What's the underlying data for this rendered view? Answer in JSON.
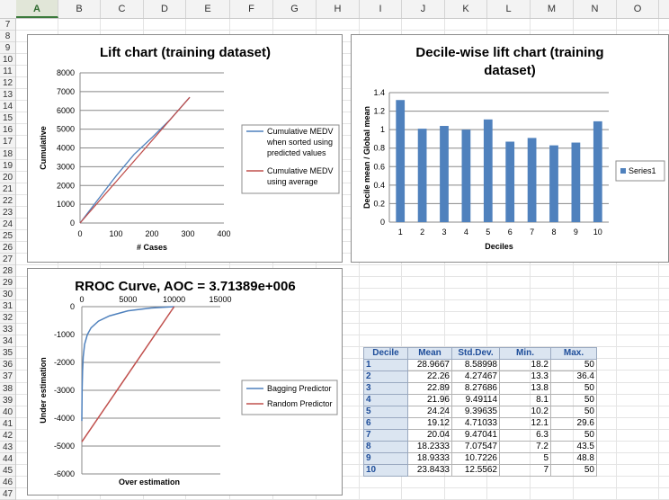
{
  "sheet": {
    "columns": [
      "A",
      "B",
      "C",
      "D",
      "E",
      "F",
      "G",
      "H",
      "I",
      "J",
      "K",
      "L",
      "M",
      "N",
      "O"
    ],
    "active_column": "A",
    "rows": [
      7,
      8,
      9,
      10,
      11,
      12,
      13,
      14,
      15,
      16,
      17,
      18,
      19,
      20,
      21,
      22,
      23,
      24,
      25,
      26,
      27,
      28,
      29,
      30,
      31,
      32,
      33,
      34,
      35,
      36,
      37,
      38,
      39,
      40,
      41,
      42,
      43,
      44,
      45,
      46,
      47
    ]
  },
  "lift_chart": {
    "chart_data": {
      "type": "line",
      "title": "Lift chart (training dataset)",
      "xlabel": "# Cases",
      "ylabel": "Cumulative",
      "xlim": [
        0,
        400
      ],
      "ylim": [
        0,
        8000
      ],
      "xticks": [
        "0",
        "100",
        "200",
        "300",
        "400"
      ],
      "yticks": [
        "0",
        "1000",
        "2000",
        "3000",
        "4000",
        "5000",
        "6000",
        "7000",
        "8000"
      ],
      "grid": "horizontal",
      "legend_position": "right",
      "series": [
        {
          "name": "Cumulative MEDV when sorted using predicted values",
          "color": "#4f81bd",
          "x": [
            0,
            20,
            50,
            100,
            150,
            200,
            250,
            305
          ],
          "y": [
            0,
            500,
            1250,
            2500,
            3650,
            4550,
            5500,
            6700
          ]
        },
        {
          "name": "Cumulative MEDV using average",
          "color": "#c0504d",
          "x": [
            0,
            305
          ],
          "y": [
            0,
            6700
          ]
        }
      ]
    },
    "legend_lines": [
      [
        "Cumulative MEDV",
        "when sorted using",
        "predicted values"
      ],
      [
        "Cumulative MEDV",
        "using average"
      ]
    ]
  },
  "decile_chart": {
    "chart_data": {
      "type": "bar",
      "title": "Decile-wise lift chart (training dataset)",
      "xlabel": "Deciles",
      "ylabel": "Decile mean / Global mean",
      "categories": [
        "1",
        "2",
        "3",
        "4",
        "5",
        "6",
        "7",
        "8",
        "9",
        "10"
      ],
      "ylim": [
        0,
        1.4
      ],
      "yticks": [
        "0",
        "0.2",
        "0.4",
        "0.6",
        "0.8",
        "1",
        "1.2",
        "1.4"
      ],
      "grid": "horizontal",
      "legend_position": "right",
      "series": [
        {
          "name": "Series1",
          "color": "#4f81bd",
          "values": [
            1.32,
            1.01,
            1.04,
            1.0,
            1.11,
            0.87,
            0.91,
            0.83,
            0.86,
            1.09
          ]
        }
      ]
    },
    "title_lines": [
      "Decile-wise lift chart (training",
      "dataset)"
    ]
  },
  "rroc_chart": {
    "chart_data": {
      "type": "line",
      "title": "RROC Curve, AOC = 3.71389e+006",
      "xlabel": "Over estimation",
      "ylabel": "Under estimation",
      "xlim": [
        0,
        15000
      ],
      "ylim": [
        -6000,
        0
      ],
      "xticks": [
        "0",
        "5000",
        "10000",
        "15000"
      ],
      "yticks": [
        "0",
        "-1000",
        "-2000",
        "-3000",
        "-4000",
        "-5000",
        "-6000"
      ],
      "grid": "horizontal",
      "legend_position": "right",
      "series": [
        {
          "name": "Bagging Predictor",
          "color": "#4f81bd",
          "x": [
            0,
            30,
            80,
            150,
            300,
            600,
            1000,
            1800,
            3000,
            5000,
            7500,
            10000
          ],
          "y": [
            -4100,
            -3000,
            -2300,
            -1800,
            -1350,
            -1000,
            -760,
            -520,
            -330,
            -150,
            -50,
            0
          ]
        },
        {
          "name": "Random Predictor",
          "color": "#c0504d",
          "x": [
            0,
            10000
          ],
          "y": [
            -4850,
            0
          ]
        }
      ]
    }
  },
  "stats_table": {
    "headers": [
      "Decile",
      "Mean",
      "Std.Dev.",
      "Min.",
      "Max."
    ],
    "rows": [
      [
        "1",
        "28.9667",
        "8.58998",
        "18.2",
        "50"
      ],
      [
        "2",
        "22.26",
        "4.27467",
        "13.3",
        "36.4"
      ],
      [
        "3",
        "22.89",
        "8.27686",
        "13.8",
        "50"
      ],
      [
        "4",
        "21.96",
        "9.49114",
        "8.1",
        "50"
      ],
      [
        "5",
        "24.24",
        "9.39635",
        "10.2",
        "50"
      ],
      [
        "6",
        "19.12",
        "4.71033",
        "12.1",
        "29.6"
      ],
      [
        "7",
        "20.04",
        "9.47041",
        "6.3",
        "50"
      ],
      [
        "8",
        "18.2333",
        "7.07547",
        "7.2",
        "43.5"
      ],
      [
        "9",
        "18.9333",
        "10.7226",
        "5",
        "48.8"
      ],
      [
        "10",
        "23.8433",
        "12.5562",
        "7",
        "50"
      ]
    ]
  }
}
